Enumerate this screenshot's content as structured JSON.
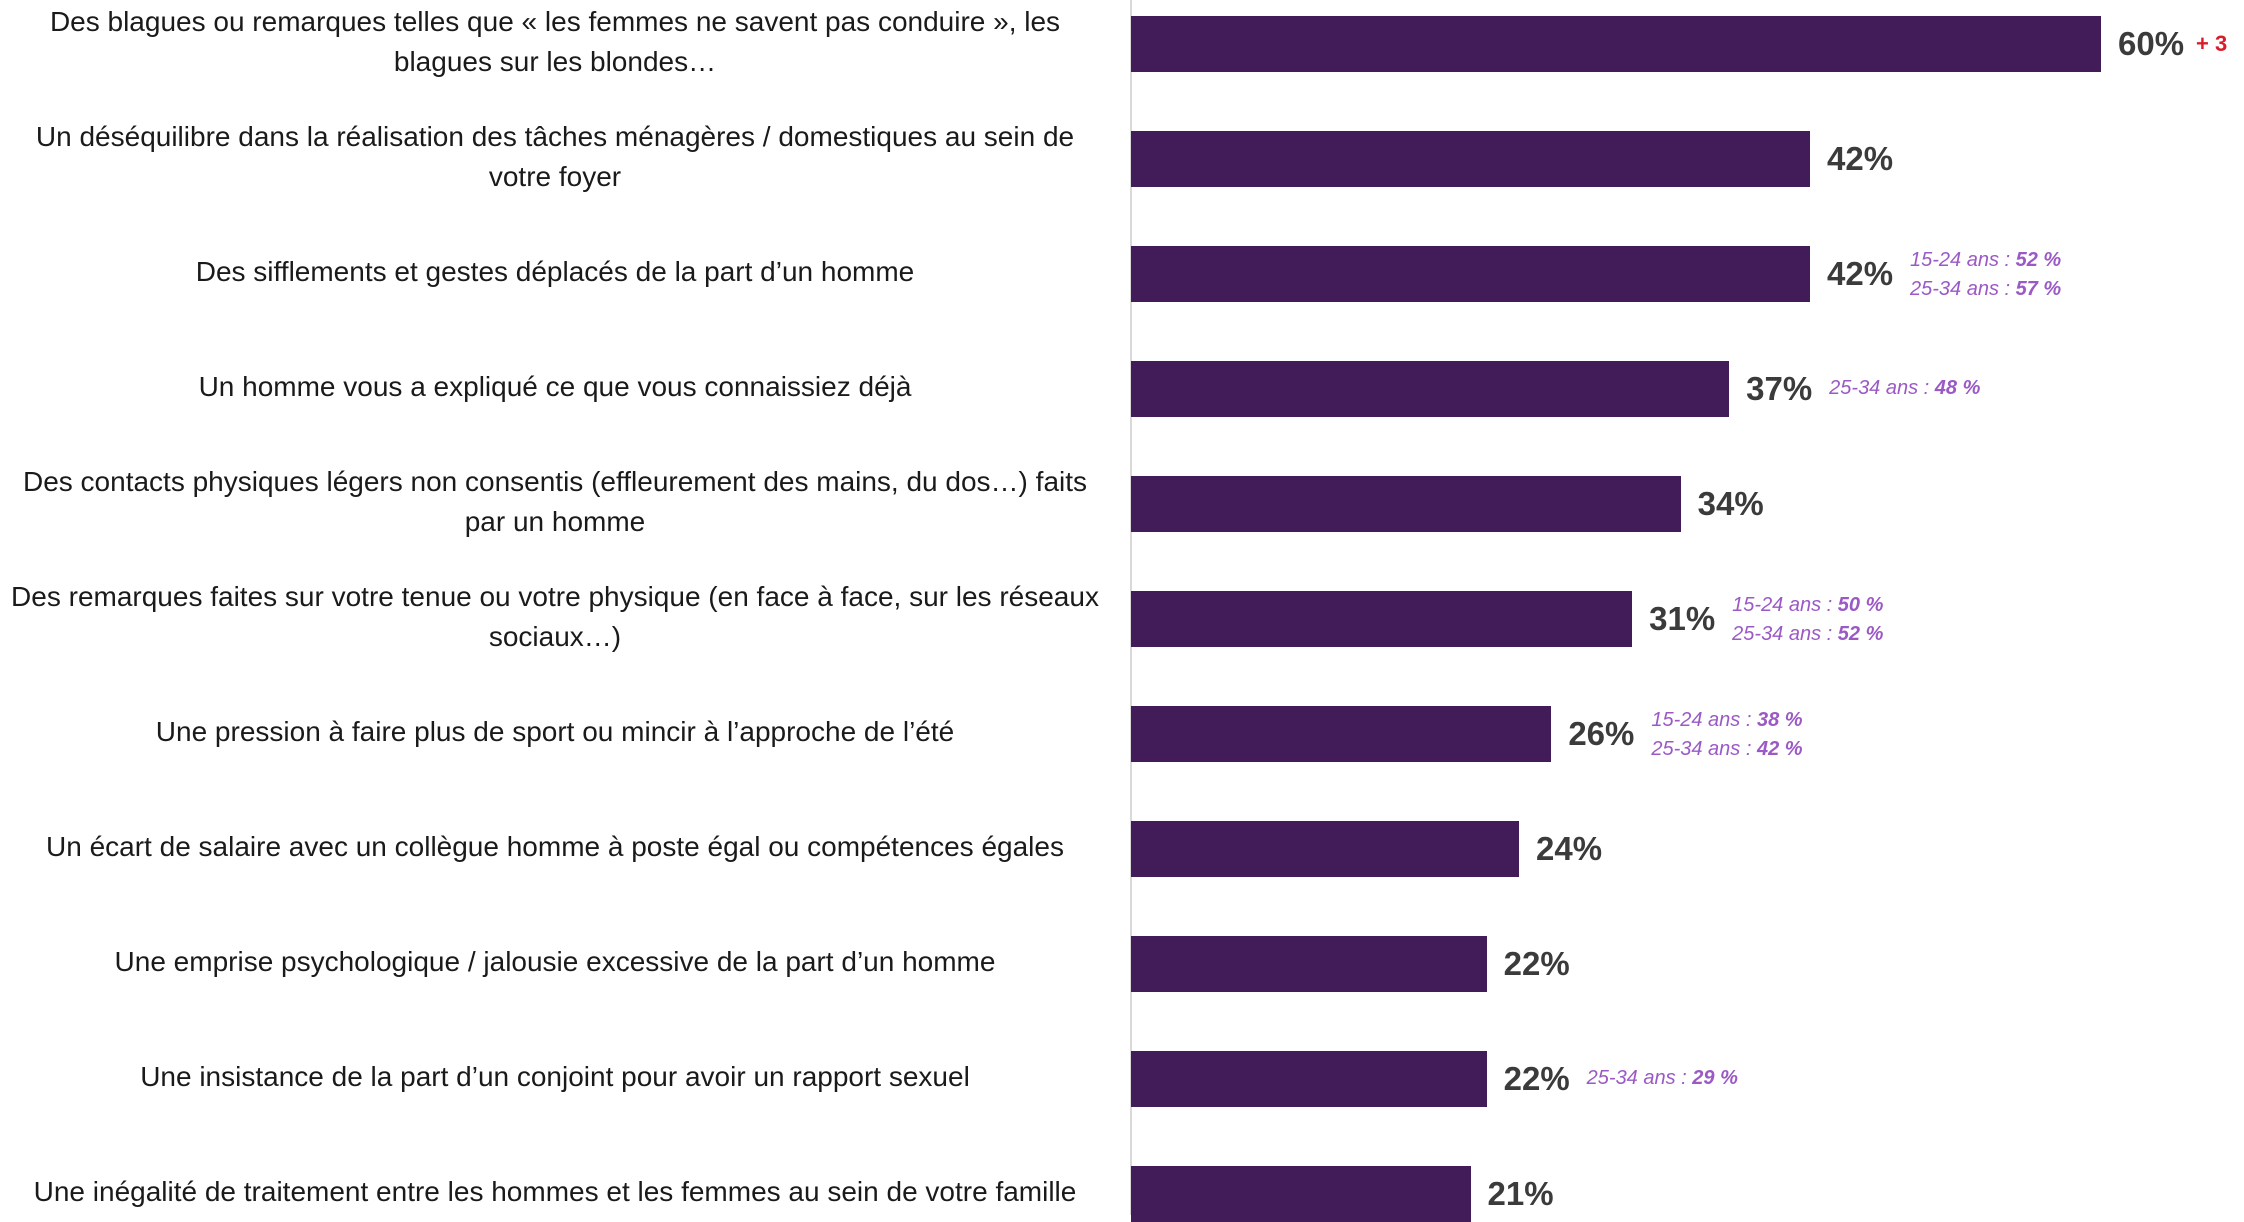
{
  "chart_data": {
    "type": "bar",
    "orientation": "horizontal",
    "title": "",
    "xlabel": "",
    "ylabel": "",
    "xlim": [
      0,
      60
    ],
    "grid": false,
    "legend": "none",
    "bar_color": "#421c58",
    "sub_color": "#9b59c5",
    "delta_color": "#d81e2a",
    "categories": [
      "Des blagues ou remarques telles que « les femmes ne savent pas conduire », les blagues sur les blondes…",
      "Un déséquilibre dans la réalisation des tâches ménagères / domestiques au sein de votre foyer",
      "Des sifflements et gestes déplacés de la part d’un homme",
      "Un homme vous a expliqué ce que vous connaissiez déjà",
      "Des contacts physiques légers non consentis (effleurement des mains, du dos…) faits par un homme",
      "Des remarques faites sur votre tenue ou votre physique (en face à face, sur les réseaux sociaux…)",
      "Une pression à faire plus de sport ou mincir à l’approche de l’été",
      "Un écart de salaire avec un collègue homme à poste égal ou compétences égales",
      "Une emprise psychologique / jalousie excessive de la part d’un homme",
      "Une insistance de la part d’un conjoint pour avoir un rapport sexuel",
      "Une inégalité de traitement entre les hommes et les femmes au sein de votre famille"
    ],
    "values": [
      60,
      42,
      42,
      37,
      34,
      31,
      26,
      24,
      22,
      22,
      21
    ],
    "value_labels": [
      "60%",
      "42%",
      "42%",
      "37%",
      "34%",
      "31%",
      "26%",
      "24%",
      "22%",
      "22%",
      "21%"
    ],
    "annotations": [
      {
        "delta": "+ 3",
        "sub": []
      },
      {
        "sub": []
      },
      {
        "sub": [
          {
            "label": "15-24 ans : ",
            "value": "52 %"
          },
          {
            "label": "25-34 ans : ",
            "value": "57 %"
          }
        ]
      },
      {
        "sub": [
          {
            "label": "25-34 ans : ",
            "value": "48 %"
          }
        ]
      },
      {
        "sub": []
      },
      {
        "sub": [
          {
            "label": "15-24 ans : ",
            "value": "50 %"
          },
          {
            "label": "25-34 ans : ",
            "value": "52 %"
          }
        ]
      },
      {
        "sub": [
          {
            "label": "15-24 ans : ",
            "value": "38 %"
          },
          {
            "label": "25-34 ans : ",
            "value": "42 %"
          }
        ]
      },
      {
        "sub": []
      },
      {
        "sub": []
      },
      {
        "sub": [
          {
            "label": "25-34 ans : ",
            "value": "29 %"
          }
        ]
      },
      {
        "sub": []
      }
    ]
  }
}
